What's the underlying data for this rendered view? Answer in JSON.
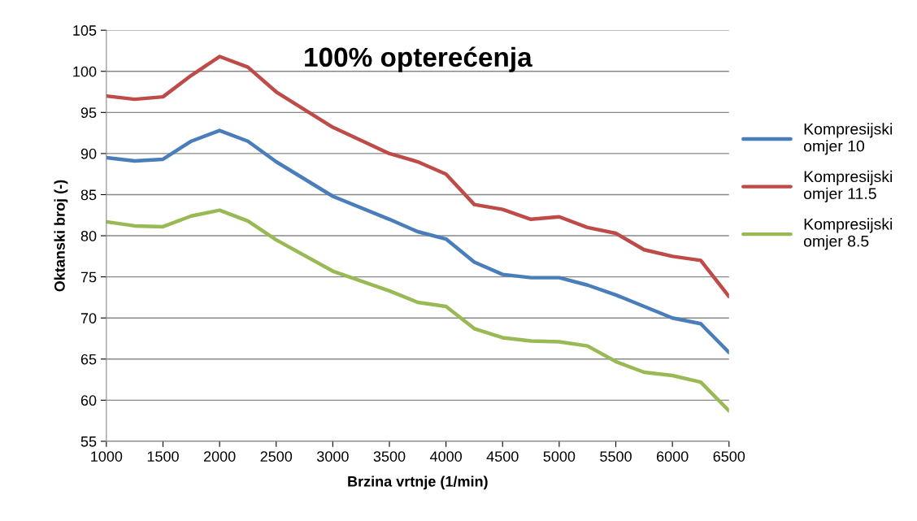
{
  "chart_data": {
    "type": "line",
    "title": "100% opterećenja",
    "xlabel": "Brzina vrtnje (1/min)",
    "ylabel": "Oktanski broj (-)",
    "x": [
      1000,
      1250,
      1500,
      1750,
      2000,
      2250,
      2500,
      3000,
      3500,
      3750,
      4000,
      4250,
      4500,
      4750,
      5000,
      5250,
      5500,
      5750,
      6000,
      6250,
      6500
    ],
    "series": [
      {
        "name": "Kompresijski omjer 10",
        "color": "#4a7ebb",
        "values": [
          89.5,
          89.1,
          89.3,
          91.5,
          92.8,
          91.5,
          89,
          84.8,
          82,
          80.5,
          79.6,
          76.8,
          75.3,
          74.9,
          74.9,
          74,
          72.8,
          71.4,
          70,
          69.3,
          65.8
        ]
      },
      {
        "name": "Kompresijski omjer 11.5",
        "color": "#be4b48",
        "values": [
          97,
          96.6,
          96.9,
          99.5,
          101.8,
          100.5,
          97.5,
          93.2,
          90,
          89,
          87.5,
          83.8,
          83.2,
          82,
          82.3,
          81,
          80.3,
          78.3,
          77.5,
          77,
          72.6
        ]
      },
      {
        "name": "Kompresijski omjer 8.5",
        "color": "#98b954",
        "values": [
          81.7,
          81.2,
          81.1,
          82.4,
          83.1,
          81.8,
          79.5,
          75.7,
          73.3,
          71.9,
          71.4,
          68.7,
          67.6,
          67.2,
          67.1,
          66.6,
          64.7,
          63.4,
          63,
          62.2,
          58.7
        ]
      }
    ],
    "xlim": [
      1000,
      6500
    ],
    "xticks": [
      1000,
      1500,
      2000,
      2500,
      3000,
      3500,
      4000,
      4500,
      5000,
      5500,
      6000,
      6500
    ],
    "ylim": [
      55,
      105
    ],
    "yticks": [
      55,
      60,
      65,
      70,
      75,
      80,
      85,
      90,
      95,
      100,
      105
    ],
    "grid": "y",
    "legend": "right",
    "marker": "none",
    "line_style": "solid"
  }
}
